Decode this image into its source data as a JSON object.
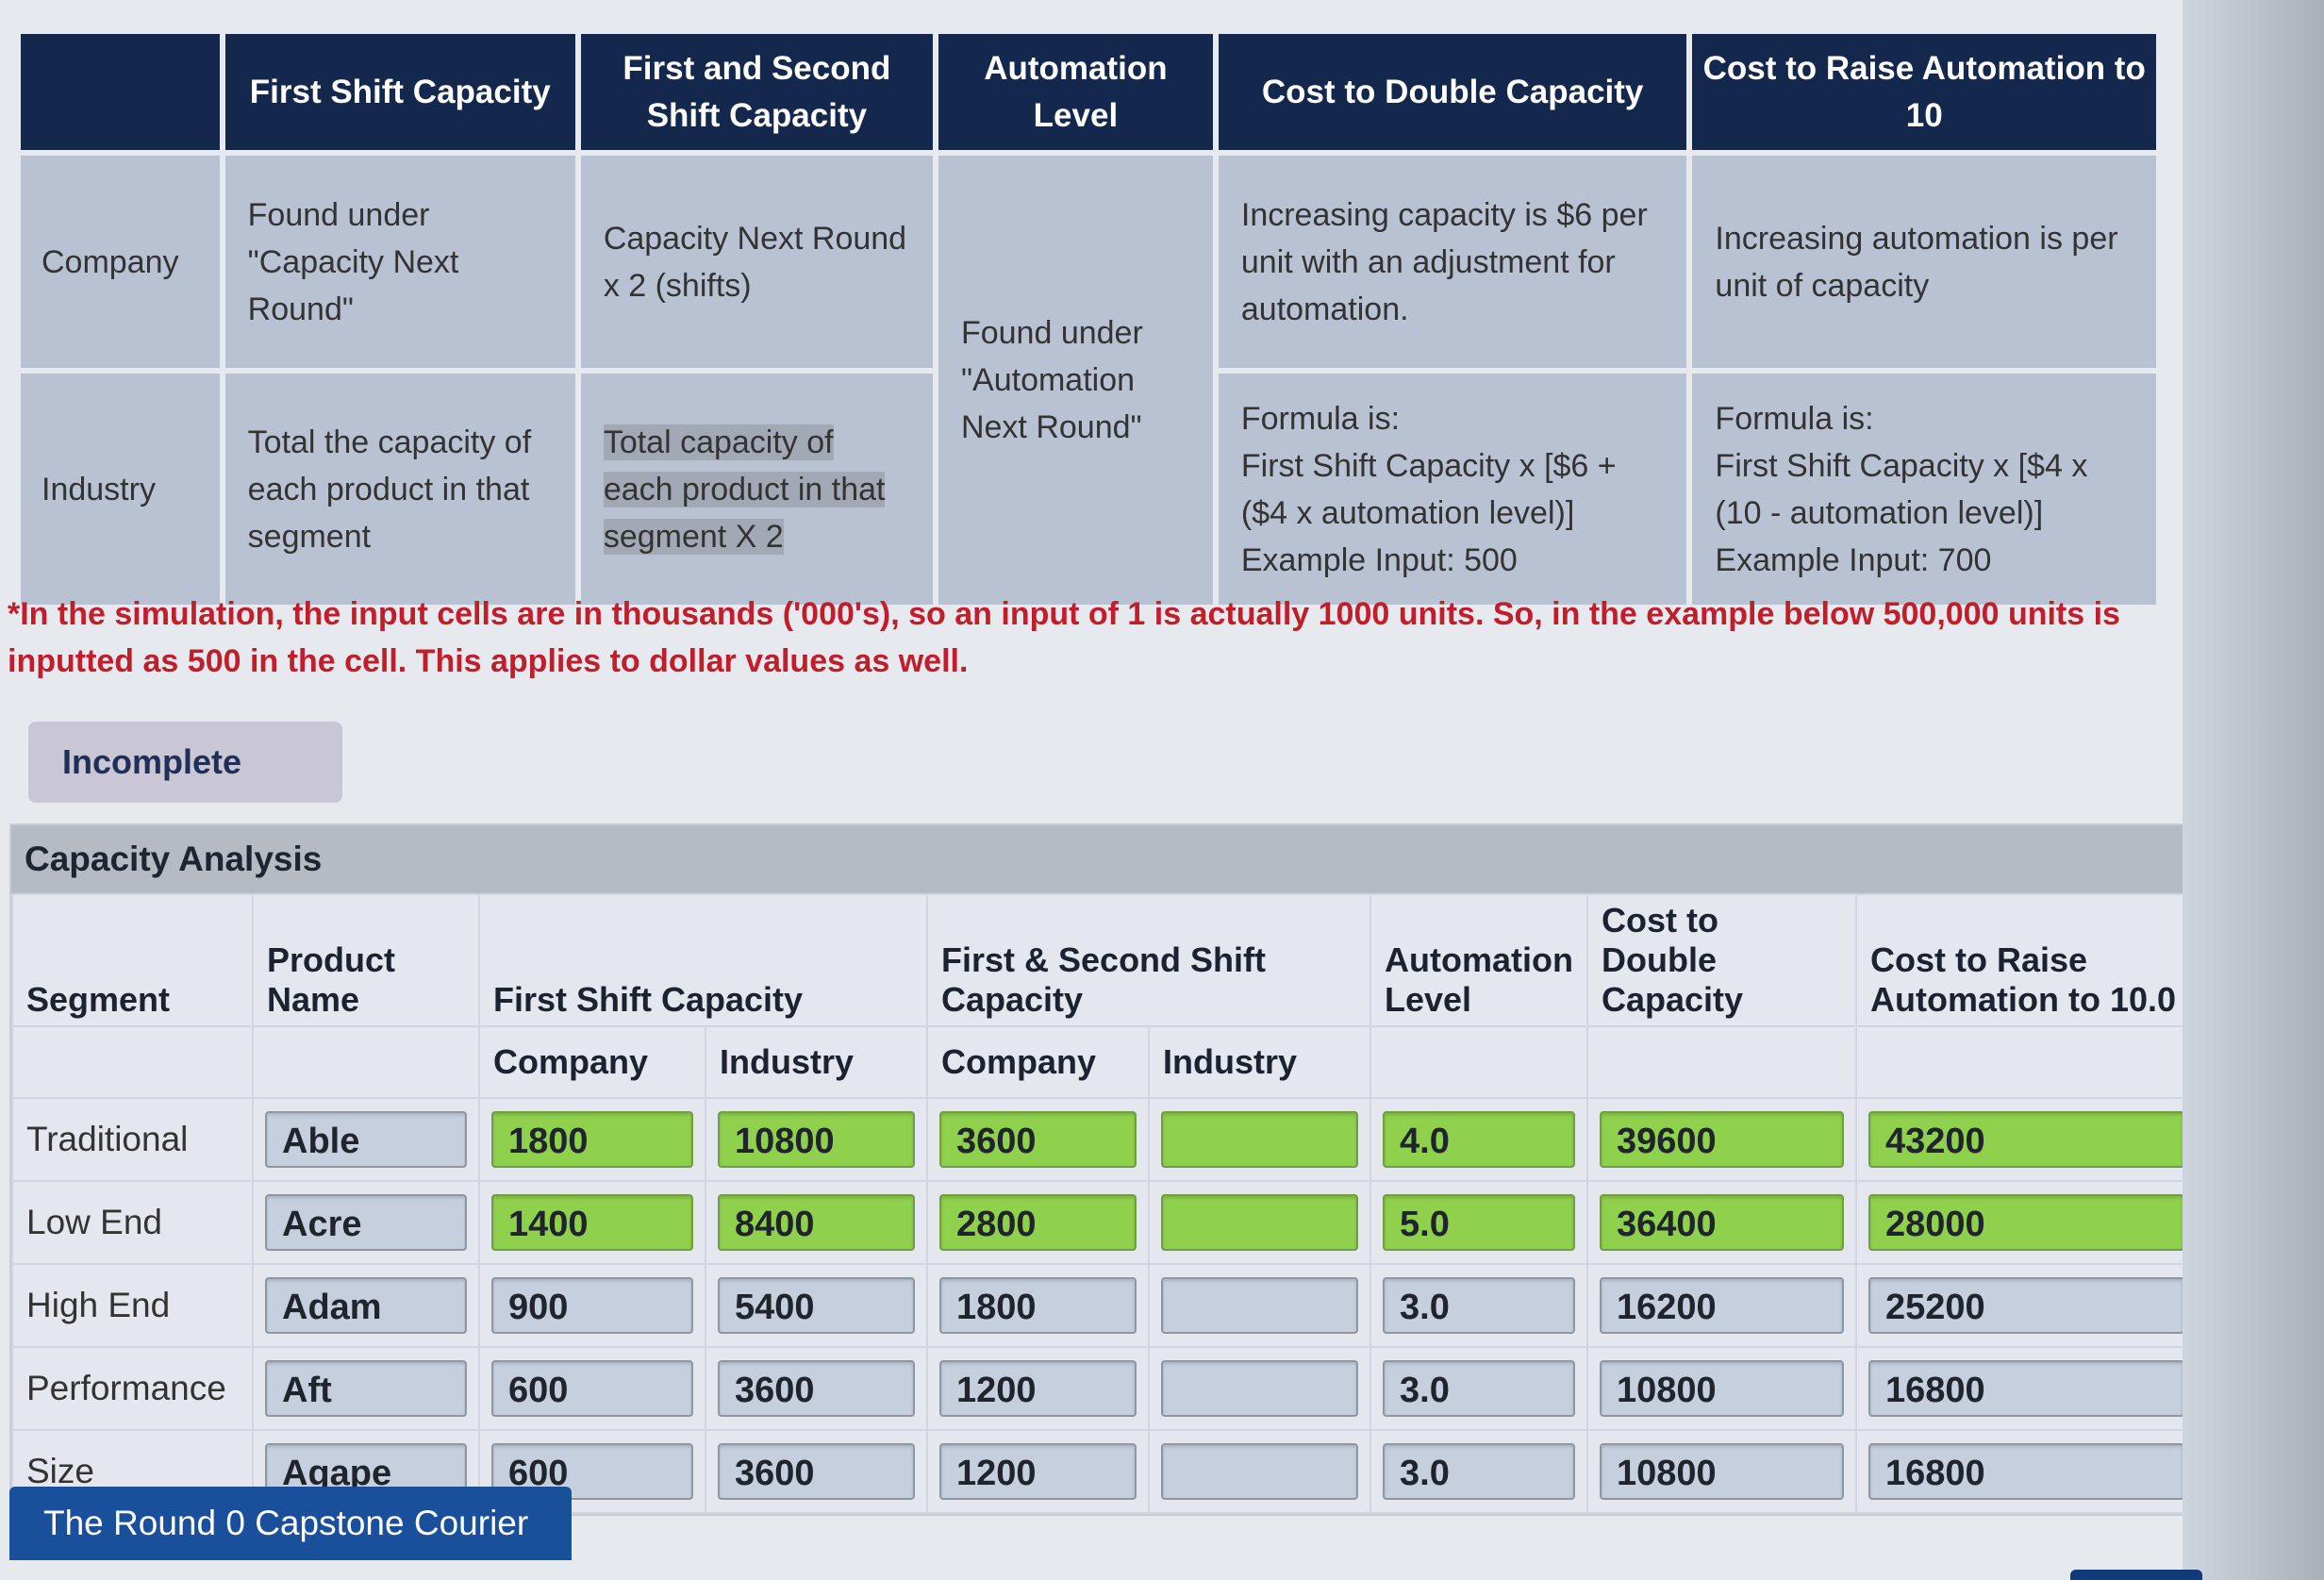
{
  "reference": {
    "headers": [
      "",
      "First Shift Capacity",
      "First and Second Shift Capacity",
      "Automation Level",
      "Cost to Double Capacity",
      "Cost to Raise Automation to 10"
    ],
    "company": {
      "label": "Company",
      "first_shift": "Found under \"Capacity Next Round\"",
      "first_second": "Capacity Next Round x 2 (shifts)",
      "cost_double": "Increasing capacity is $6 per unit with an adjustment for automation.",
      "cost_raise": "Increasing automation is per unit of capacity"
    },
    "industry": {
      "label": "Industry",
      "first_shift": "Total the capacity of each product in that segment",
      "first_second": "Total capacity of each product in that segment X 2",
      "cost_double": "Formula is:\nFirst Shift Capacity x [$6 + ($4 x automation level)]\nExample Input: 500",
      "cost_raise": "Formula is:\nFirst Shift Capacity x [$4 x (10 - automation level)]\nExample Input: 700"
    },
    "automation_shared": "Found under \"Automation Next Round\""
  },
  "note": "*In the simulation, the input cells are in thousands ('000's), so an input of 1 is actually 1000 units. So, in the example below 500,000 units is inputted as 500 in the cell. This applies to dollar values as well.",
  "status": "Incomplete",
  "analysis": {
    "title": "Capacity Analysis",
    "headers": {
      "segment": "Segment",
      "product": "Product Name",
      "first_shift": "First Shift Capacity",
      "first_second": "First & Second Shift Capacity",
      "automation": "Automation Level",
      "cost_double": "Cost to Double Capacity",
      "cost_raise": "Cost to Raise Automation to 10.0",
      "company": "Company",
      "industry": "Industry"
    },
    "rows": [
      {
        "segment": "Traditional",
        "product": "Able",
        "fs_company": "1800",
        "fs_industry": "10800",
        "fss_company": "3600",
        "fss_industry": "",
        "automation": "4.0",
        "cost_double": "39600",
        "cost_raise": "43200"
      },
      {
        "segment": "Low End",
        "product": "Acre",
        "fs_company": "1400",
        "fs_industry": "8400",
        "fss_company": "2800",
        "fss_industry": "",
        "automation": "5.0",
        "cost_double": "36400",
        "cost_raise": "28000"
      },
      {
        "segment": "High End",
        "product": "Adam",
        "fs_company": "900",
        "fs_industry": "5400",
        "fss_company": "1800",
        "fss_industry": "",
        "automation": "3.0",
        "cost_double": "16200",
        "cost_raise": "25200"
      },
      {
        "segment": "Performance",
        "product": "Aft",
        "fs_company": "600",
        "fs_industry": "3600",
        "fss_company": "1200",
        "fss_industry": "",
        "automation": "3.0",
        "cost_double": "10800",
        "cost_raise": "16800"
      },
      {
        "segment": "Size",
        "product": "Agape",
        "fs_company": "600",
        "fs_industry": "3600",
        "fss_company": "1200",
        "fss_industry": "",
        "automation": "3.0",
        "cost_double": "10800",
        "cost_raise": "16800"
      }
    ]
  },
  "footer_tab": "The Round 0 Capstone Courier",
  "colors": {
    "correct": "#8fd04d",
    "header": "#14284d",
    "note": "#c21d2b"
  }
}
